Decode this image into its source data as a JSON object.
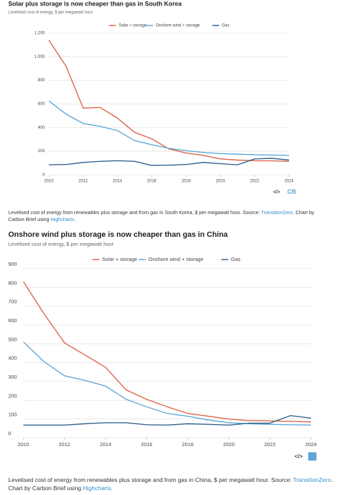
{
  "chart_data": [
    {
      "type": "line",
      "title": "Solar plus storage is now cheaper than gas in South Korea",
      "subtitle": "Levelised cost of energy, $ per megawatt hour",
      "x": [
        2010,
        2011,
        2012,
        2013,
        2014,
        2015,
        2016,
        2017,
        2018,
        2019,
        2020,
        2021,
        2022,
        2023,
        2024
      ],
      "series": [
        {
          "name": "Solar + storage",
          "color": "#dd6146",
          "values": [
            1140,
            920,
            565,
            570,
            480,
            360,
            305,
            220,
            185,
            165,
            135,
            125,
            120,
            118,
            115
          ]
        },
        {
          "name": "Onshore wind + storage",
          "color": "#5ea6d8",
          "values": [
            625,
            515,
            435,
            410,
            375,
            290,
            255,
            225,
            205,
            190,
            180,
            175,
            170,
            168,
            165
          ]
        },
        {
          "name": "Gas",
          "color": "#2f5e8c",
          "values": [
            85,
            88,
            105,
            115,
            120,
            115,
            80,
            82,
            88,
            105,
            95,
            85,
            135,
            140,
            125
          ]
        }
      ],
      "xlim": [
        2010,
        2024
      ],
      "xticks": [
        2010,
        2012,
        2014,
        2016,
        2018,
        2020,
        2022,
        2024
      ],
      "ylim": [
        0,
        1200
      ],
      "yticks": [
        0,
        200,
        400,
        600,
        800,
        {
          "value": 1000,
          "label": "1,000"
        },
        {
          "value": 1200,
          "label": "1,200"
        }
      ],
      "grid": true,
      "legend": "top",
      "logo": "CB",
      "caption": [
        "Levelised cost of energy from renewables plus storage and from gas in South Korea, $ per megawatt hour. Source: ",
        "TransitionZero",
        ". Chart by Carbon Brief using ",
        "Highcharts",
        "."
      ]
    },
    {
      "type": "line",
      "title": "Onshore wind plus storage is now cheaper than gas in China",
      "subtitle": "Levelised cost of energy, $ per megawatt hour",
      "x": [
        2010,
        2011,
        2012,
        2013,
        2014,
        2015,
        2016,
        2017,
        2018,
        2019,
        2020,
        2021,
        2022,
        2023,
        2024
      ],
      "series": [
        {
          "name": "Solar + storage",
          "color": "#dd6146",
          "values": [
            830,
            660,
            505,
            440,
            375,
            255,
            205,
            165,
            130,
            115,
            100,
            92,
            90,
            88,
            85
          ]
        },
        {
          "name": "Onshore wind + storage",
          "color": "#5ea6d8",
          "values": [
            510,
            405,
            330,
            305,
            275,
            205,
            165,
            130,
            115,
            95,
            80,
            75,
            72,
            70,
            68
          ]
        },
        {
          "name": "Gas",
          "color": "#2f5e8c",
          "values": [
            68,
            68,
            68,
            75,
            80,
            80,
            70,
            68,
            75,
            72,
            68,
            78,
            78,
            118,
            105
          ]
        }
      ],
      "xlim": [
        2010,
        2024
      ],
      "xticks": [
        2010,
        2012,
        2014,
        2016,
        2018,
        2020,
        2022,
        2024
      ],
      "ylim": [
        0,
        900
      ],
      "yticks": [
        0,
        100,
        200,
        300,
        400,
        500,
        600,
        700,
        800,
        900
      ],
      "grid": true,
      "legend": "top",
      "caption": [
        "Levelised cost of energy from renewables plus storage and from gas in China, $ per megawatt hour. Source: ",
        "TransitionZero",
        ". Chart by Carbon Brief using ",
        "Highcharts",
        "."
      ]
    }
  ]
}
